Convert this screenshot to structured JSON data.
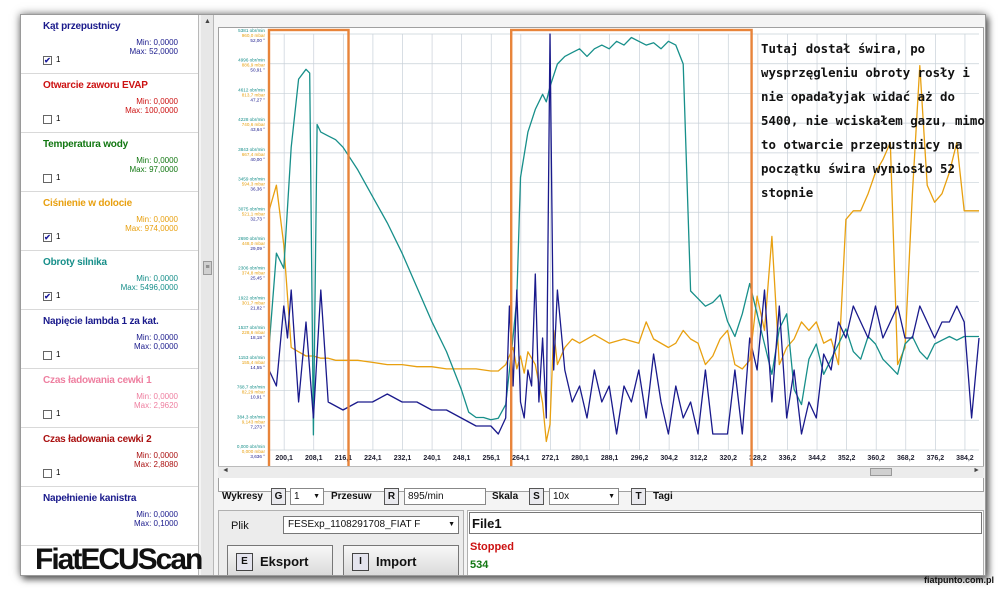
{
  "parameters": [
    {
      "name": "Kąt przepustnicy",
      "color": "#1a1a8c",
      "min": "Min: 0,0000",
      "max": "Max: 52,0000",
      "checked": true,
      "index": "1"
    },
    {
      "name": "Otwarcie zaworu EVAP",
      "color": "#cc1111",
      "min": "Min: 0,0000",
      "max": "Max: 100,0000",
      "checked": false,
      "index": "1"
    },
    {
      "name": "Temperatura wody",
      "color": "#117711",
      "min": "Min: 0,0000",
      "max": "Max: 97,0000",
      "checked": false,
      "index": "1"
    },
    {
      "name": "Ciśnienie w dolocie",
      "color": "#e8a010",
      "min": "Min: 0,0000",
      "max": "Max: 974,0000",
      "checked": true,
      "index": "1"
    },
    {
      "name": "Obroty silnika",
      "color": "#178f8a",
      "min": "Min: 0,0000",
      "max": "Max: 5496,0000",
      "checked": true,
      "index": "1"
    },
    {
      "name": "Napięcie lambda 1 za kat.",
      "color": "#1a1a8c",
      "min": "Min: 0,0000",
      "max": "Max: 0,0000",
      "checked": false,
      "index": "1"
    },
    {
      "name": "Czas ładowania cewki 1",
      "color": "#ee7fa0",
      "min": "Min: 0,0000",
      "max": "Max: 2,9620",
      "checked": false,
      "index": "1"
    },
    {
      "name": "Czas ładowania cewki 2",
      "color": "#aa1111",
      "min": "Min: 0,0000",
      "max": "Max: 2,8080",
      "checked": false,
      "index": "1"
    },
    {
      "name": "Napełnienie kanistra",
      "color": "#1a1a8c",
      "min": "Min: 0,0000",
      "max": "Max: 0,1000",
      "checked": false,
      "index": ""
    }
  ],
  "logo": "FiatECUScan",
  "controls": {
    "wykresy_label": "Wykresy",
    "wykresy_key": "G",
    "wykresy_value": "1",
    "przesuw_label": "Przesuw",
    "przesuw_key": "R",
    "przesuw_value": "895/min",
    "skala_label": "Skala",
    "skala_key": "S",
    "skala_value": "10x",
    "tagi_key": "T",
    "tagi_label": "Tagi"
  },
  "file": {
    "plik_label": "Plik",
    "plik_value": "FESExp_1108291708_FIAT F",
    "eksport_key": "E",
    "eksport_label": "Eksport",
    "import_key": "I",
    "import_label": "Import",
    "title": "File1",
    "status": "Stopped",
    "count": "534"
  },
  "annotation": "Tutaj dostał świra, po wysprzęgleniu obroty rosły i nie opadałyjak widać aż do 5400, nie wciskałem gazu, mimo to otwarcie przepustnicy na początku świra wyniosło 52 stopnie",
  "watermark": "fiatpunto.com.pl",
  "colors": {
    "rpm": "#178f8a",
    "throttle": "#1a1a8c",
    "pressure": "#e8a010",
    "highlight": "#e8843a",
    "grid": "#c8d0d8"
  },
  "chart_data": {
    "type": "line",
    "x_ticks": [
      "200,1",
      "208,1",
      "216,1",
      "224,1",
      "232,1",
      "240,1",
      "248,1",
      "256,1",
      "264,1",
      "272,1",
      "280,1",
      "288,1",
      "296,2",
      "304,2",
      "312,2",
      "320,2",
      "328,2",
      "336,2",
      "344,2",
      "352,2",
      "360,2",
      "368,2",
      "376,2",
      "384,2"
    ],
    "y_axis_rpm": [
      "5381 obr/min",
      "4996 obr/min",
      "4612 obr/min",
      "4228 obr/min",
      "3843 obr/min",
      "3459 obr/min",
      "3075 obr/min",
      "2690 obr/min",
      "2306 obr/min",
      "1922 obr/min",
      "1537 obr/min",
      "1153 obr/min",
      "768,7 obr/min",
      "384,3 obr/min",
      "0,000 obr/min"
    ],
    "y_axis_pressure": [
      "960,0 mbar",
      "886,9 mbar",
      "813,7 mbar",
      "740,6 mbar",
      "667,4 mbar",
      "594,3 mbar",
      "521,1 mbar",
      "448,0 mbar",
      "374,8 mbar",
      "301,7 mbar",
      "228,6 mbar",
      "155,4 mbar",
      "82,29 mbar",
      "9,143 mbar",
      "0,000 mbar"
    ],
    "y_axis_throttle": [
      "52,00 °",
      "50,91 °",
      "47,27 °",
      "43,64 °",
      "40,00 °",
      "36,36 °",
      "32,73 °",
      "29,09 °",
      "25,45 °",
      "21,82 °",
      "18,18 °",
      "14,55 °",
      "10,91 °",
      "7,273 °",
      "3,636 °",
      "0,000 °"
    ],
    "x_range": [
      196,
      388
    ],
    "series": [
      {
        "name": "Obroty silnika",
        "color": "#178f8a",
        "ylim": [
          0,
          5496
        ],
        "x": [
          196,
          198,
          200,
          202,
          204,
          206,
          207,
          208,
          209,
          210,
          212,
          214,
          216,
          220,
          224,
          228,
          232,
          236,
          240,
          244,
          248,
          250,
          252,
          254,
          256,
          258,
          260,
          262,
          263,
          264,
          266,
          268,
          270,
          271,
          272,
          274,
          276,
          278,
          280,
          282,
          284,
          286,
          288,
          290,
          292,
          294,
          296,
          298,
          300,
          302,
          304,
          306,
          308,
          310,
          312,
          314,
          316,
          318,
          320,
          322,
          324,
          326,
          328,
          330,
          332,
          334,
          336,
          338,
          340,
          342,
          344,
          346,
          348,
          350,
          352,
          354,
          356,
          358,
          360,
          362,
          364,
          366,
          368,
          370,
          372,
          374,
          376,
          378,
          380,
          382,
          384,
          386,
          388
        ],
        "y": [
          1350,
          2600,
          2400,
          4000,
          4900,
          5030,
          4980,
          200,
          4300,
          4200,
          4150,
          4100,
          4000,
          3700,
          3350,
          3000,
          2600,
          2150,
          1700,
          1300,
          800,
          500,
          430,
          430,
          400,
          420,
          600,
          1500,
          2000,
          3600,
          4200,
          4500,
          4700,
          4600,
          4800,
          5100,
          5200,
          5250,
          5300,
          5200,
          5300,
          5350,
          5300,
          5400,
          5350,
          5450,
          5400,
          5350,
          5380,
          5300,
          5400,
          5350,
          5100,
          2100,
          2000,
          1900,
          1950,
          2050,
          1700,
          1500,
          1800,
          2200,
          1800,
          1400,
          1000,
          1600,
          1800,
          800,
          600,
          1200,
          1400,
          1000,
          1200,
          1400,
          1600,
          1300,
          1200,
          1500,
          1400,
          1200,
          1100,
          1000,
          1400,
          1500,
          1300,
          1200,
          1400,
          1450,
          1500,
          1450,
          1500,
          1500,
          1500
        ]
      },
      {
        "name": "Kąt przepustnicy",
        "color": "#1a1a8c",
        "ylim": [
          0,
          52
        ],
        "x": [
          196,
          198,
          200,
          201,
          202,
          204,
          206,
          208,
          210,
          212,
          216,
          220,
          224,
          228,
          232,
          236,
          240,
          244,
          248,
          252,
          256,
          258,
          260,
          261,
          262,
          263,
          264,
          265,
          266,
          267,
          268,
          269,
          270,
          271,
          272,
          273,
          274,
          276,
          278,
          280,
          282,
          284,
          286,
          288,
          290,
          292,
          294,
          296,
          298,
          300,
          302,
          304,
          306,
          308,
          310,
          312,
          314,
          316,
          318,
          320,
          322,
          324,
          326,
          328,
          330,
          332,
          334,
          336,
          338,
          340,
          342,
          344,
          346,
          348,
          350,
          352,
          354,
          356,
          358,
          360,
          362,
          364,
          366,
          368,
          370,
          372,
          374,
          376,
          378,
          380,
          382,
          384,
          386,
          388
        ],
        "y": [
          10,
          8,
          18,
          14,
          20,
          6,
          16,
          4,
          20,
          6,
          5,
          6,
          6,
          7,
          6,
          6,
          5,
          5,
          4,
          3,
          3,
          2,
          4,
          18,
          8,
          20,
          6,
          4,
          10,
          8,
          22,
          6,
          14,
          4,
          52,
          10,
          20,
          10,
          6,
          8,
          4,
          10,
          6,
          8,
          2,
          8,
          6,
          10,
          4,
          12,
          6,
          2,
          8,
          4,
          6,
          2,
          10,
          2,
          2,
          2,
          10,
          2,
          14,
          10,
          20,
          6,
          18,
          4,
          10,
          2,
          6,
          4,
          12,
          10,
          16,
          14,
          18,
          16,
          14,
          18,
          14,
          16,
          18,
          14,
          14,
          18,
          16,
          14,
          16,
          16,
          18,
          16,
          4,
          14
        ]
      },
      {
        "name": "Ciśnienie w dolocie",
        "color": "#e8a010",
        "ylim": [
          0,
          974
        ],
        "x": [
          196,
          198,
          200,
          202,
          204,
          206,
          208,
          210,
          212,
          214,
          216,
          220,
          224,
          228,
          232,
          236,
          240,
          244,
          248,
          252,
          256,
          258,
          260,
          262,
          263,
          264,
          265,
          266,
          268,
          270,
          271,
          272,
          273,
          274,
          276,
          278,
          280,
          284,
          288,
          292,
          296,
          298,
          300,
          304,
          306,
          308,
          310,
          312,
          314,
          316,
          318,
          320,
          322,
          324,
          326,
          328,
          330,
          332,
          334,
          336,
          338,
          340,
          342,
          344,
          346,
          348,
          350,
          352,
          354,
          356,
          358,
          360,
          362,
          364,
          366,
          368,
          370,
          372,
          374,
          376,
          378,
          380,
          382,
          384,
          386,
          388
        ],
        "y": [
          560,
          620,
          480,
          240,
          230,
          220,
          220,
          215,
          215,
          210,
          210,
          210,
          205,
          200,
          200,
          195,
          195,
          190,
          190,
          190,
          185,
          185,
          200,
          240,
          190,
          220,
          180,
          230,
          200,
          110,
          20,
          60,
          280,
          200,
          240,
          260,
          250,
          270,
          250,
          260,
          250,
          300,
          260,
          240,
          250,
          280,
          260,
          250,
          200,
          220,
          260,
          280,
          200,
          190,
          210,
          360,
          280,
          500,
          200,
          240,
          260,
          300,
          280,
          300,
          250,
          260,
          200,
          540,
          560,
          560,
          600,
          650,
          680,
          720,
          200,
          240,
          600,
          900,
          620,
          580,
          600,
          650,
          720,
          560,
          560,
          560
        ]
      }
    ]
  }
}
